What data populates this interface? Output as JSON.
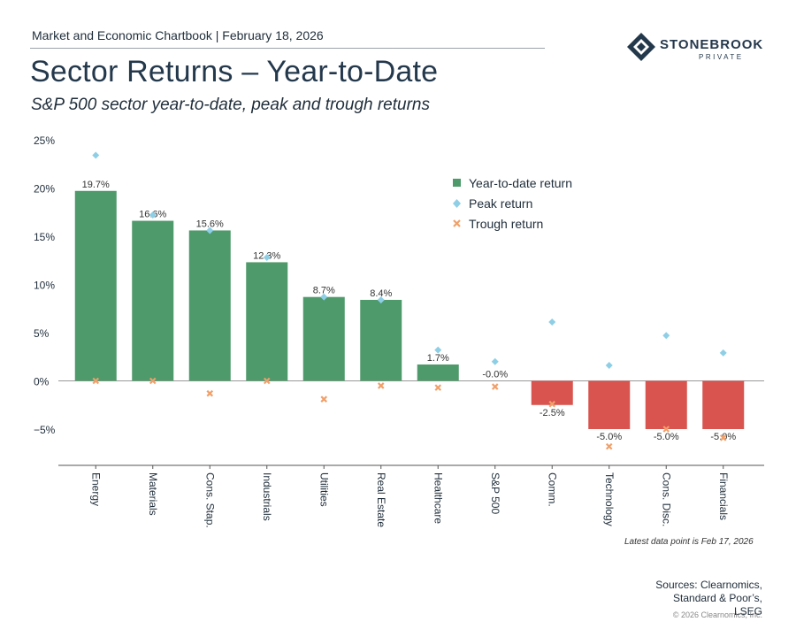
{
  "header": {
    "chartbook_line": "Market and Economic Chartbook | February 18, 2026",
    "title": "Sector Returns – Year-to-Date",
    "subtitle": "S&P 500 sector year-to-date, peak and trough returns"
  },
  "logo": {
    "name": "STONEBROOK",
    "sub": "PRIVATE"
  },
  "colors": {
    "positive_bar": "#4e9a6b",
    "negative_bar": "#d9534f",
    "peak": "#8ecfe6",
    "trough": "#f0a06a",
    "text": "#1f2d3a"
  },
  "chart_data": {
    "type": "bar",
    "categories": [
      "Energy",
      "Materials",
      "Cons. Stap.",
      "Industrials",
      "Utilities",
      "Real Estate",
      "Healthcare",
      "S&P 500",
      "Comm.",
      "Technology",
      "Cons. Disc.",
      "Financials"
    ],
    "series": [
      {
        "name": "Year-to-date return",
        "kind": "bar",
        "values": [
          19.7,
          16.6,
          15.6,
          12.3,
          8.7,
          8.4,
          1.7,
          -0.0,
          -2.5,
          -5.0,
          -5.0,
          -5.0
        ]
      },
      {
        "name": "Peak return",
        "kind": "marker",
        "values": [
          23.4,
          17.2,
          15.6,
          12.8,
          8.7,
          8.4,
          3.2,
          2.0,
          6.1,
          1.6,
          4.7,
          2.9
        ]
      },
      {
        "name": "Trough return",
        "kind": "marker",
        "values": [
          0.0,
          0.0,
          -1.3,
          0.0,
          -1.9,
          -0.5,
          -0.7,
          -0.6,
          -2.4,
          -6.8,
          -5.0,
          -5.9
        ]
      }
    ],
    "data_labels": [
      "19.7%",
      "16.6%",
      "15.6%",
      "12.3%",
      "8.7%",
      "8.4%",
      "1.7%",
      "-0.0%",
      "-2.5%",
      "-5.0%",
      "-5.0%",
      "-5.0%"
    ],
    "y_ticks": [
      25,
      20,
      15,
      10,
      5,
      0,
      -5
    ],
    "y_tick_labels": [
      "25%",
      "20%",
      "15%",
      "10%",
      "5%",
      "0%",
      "−5%"
    ],
    "ylim": [
      -8.8,
      25
    ],
    "legend": [
      "Year-to-date return",
      "Peak return",
      "Trough return"
    ],
    "legend_position": "top-right"
  },
  "footnote": "Latest data point is Feb 17, 2026",
  "sources": [
    "Sources: Clearnomics,",
    "Standard & Poor’s,",
    "LSEG"
  ],
  "copyright": "© 2026 Clearnomics, Inc."
}
